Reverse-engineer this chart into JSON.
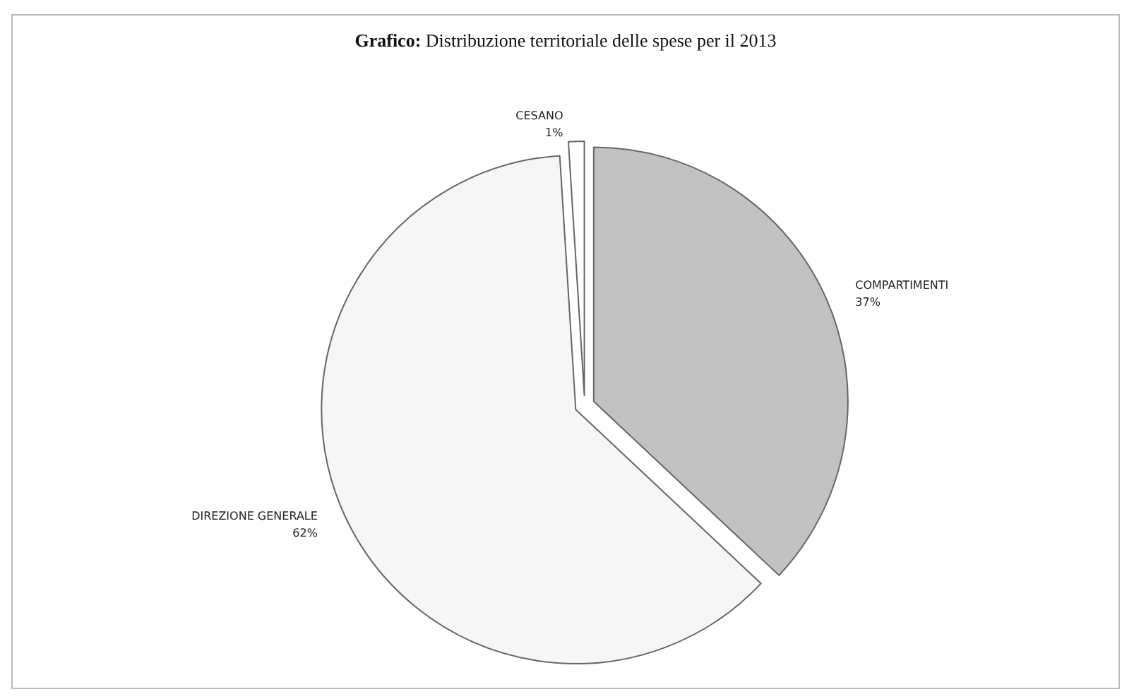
{
  "chart_data": {
    "type": "pie",
    "title": "Grafico: Distribuzione territoriale delle spese per il 2013",
    "categories": [
      "COMPARTIMENTI",
      "DIREZIONE GENERALE",
      "CESANO"
    ],
    "values": [
      37,
      62,
      1
    ],
    "colors": [
      "#c2c2c2",
      "#f6f6f6",
      "#ffffff"
    ],
    "value_labels": [
      "37%",
      "62%",
      "1%"
    ]
  }
}
